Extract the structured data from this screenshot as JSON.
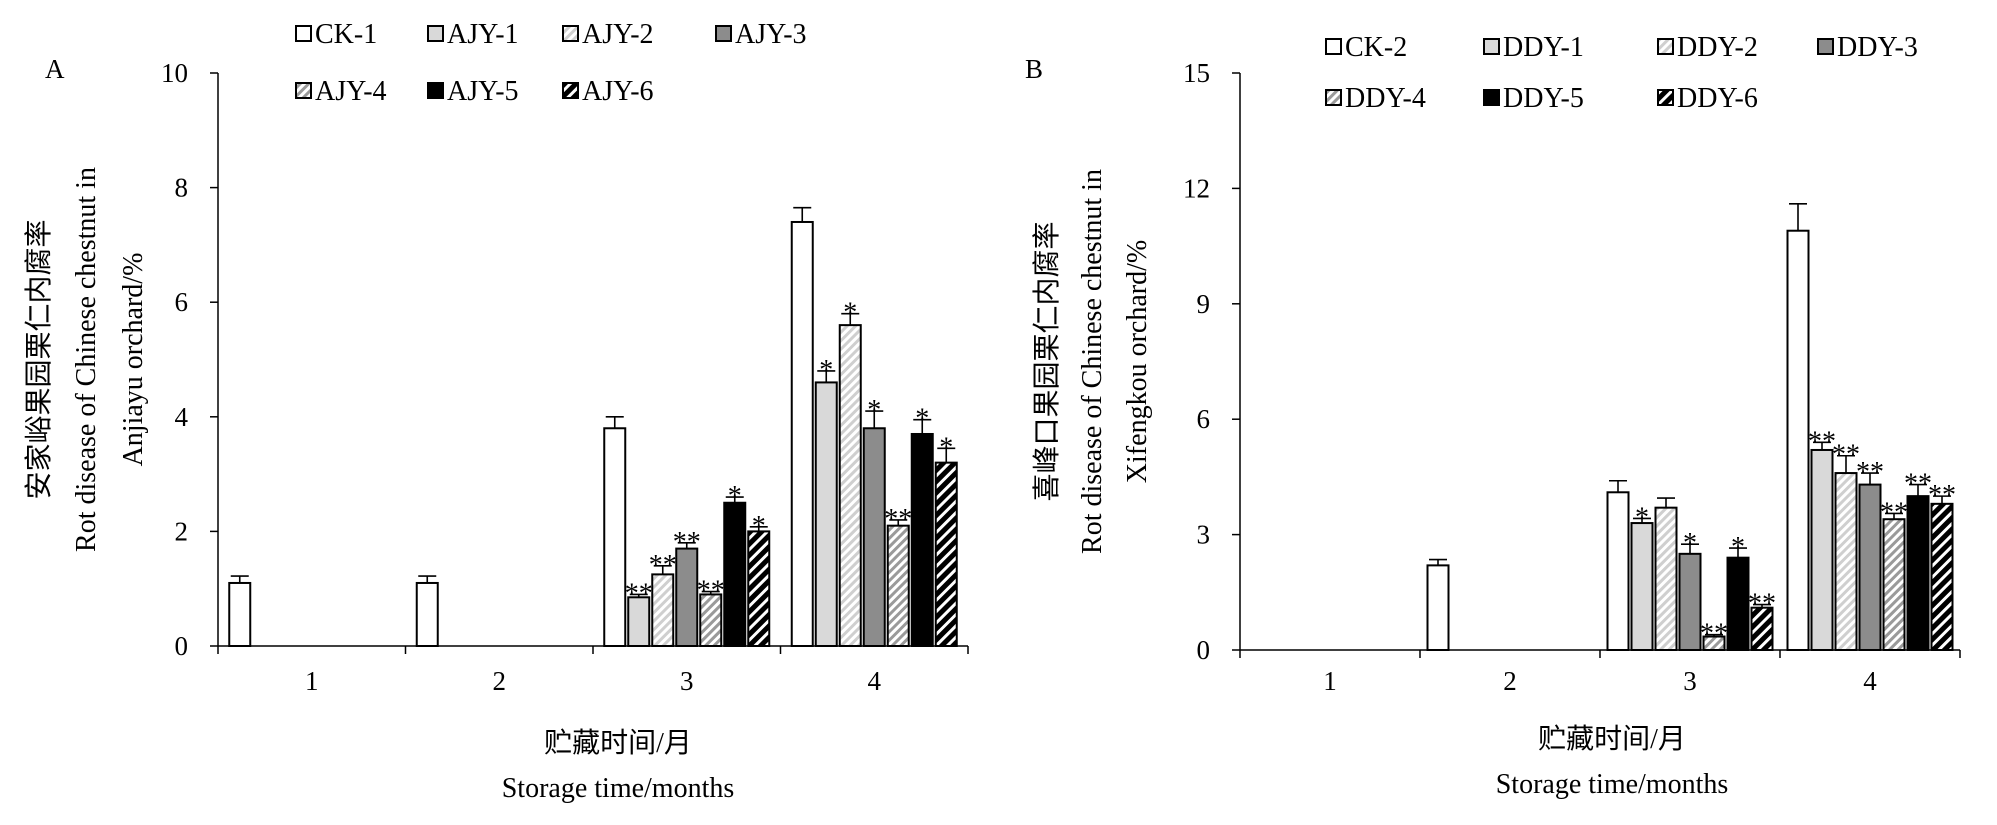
{
  "colors": {
    "black": "#000000",
    "gray": "#8c8c8c",
    "light_gray": "#d9d9d9",
    "white": "#ffffff"
  },
  "chart_data": [
    {
      "panel": "A",
      "type": "bar",
      "title": "",
      "ylabel_lines": [
        "安家峪果园栗仁内腐率",
        "Rot disease of Chinese chestnut in",
        "Anjiayu orchard/%"
      ],
      "xlabel_lines": [
        "贮藏时间/月",
        "Storage time/months"
      ],
      "categories": [
        "1",
        "2",
        "3",
        "4"
      ],
      "ylim": [
        0,
        10
      ],
      "yticks": [
        "0",
        "2",
        "4",
        "6",
        "8",
        "10"
      ],
      "grid": false,
      "legend_position": "top",
      "series": [
        {
          "name": "CK-1",
          "pattern": "white",
          "values": [
            1.1,
            1.1,
            3.8,
            7.4
          ],
          "errors": [
            0.12,
            0.12,
            0.2,
            0.25
          ],
          "marks": [
            "",
            "",
            "",
            ""
          ]
        },
        {
          "name": "AJY-1",
          "pattern": "lightgray",
          "values": [
            0,
            0,
            0.85,
            4.6
          ],
          "errors": [
            0,
            0,
            0.05,
            0.2
          ],
          "marks": [
            "",
            "",
            "**",
            "*"
          ]
        },
        {
          "name": "AJY-2",
          "pattern": "light-hatch",
          "values": [
            0,
            0,
            1.25,
            5.6
          ],
          "errors": [
            0,
            0,
            0.15,
            0.2
          ],
          "marks": [
            "",
            "",
            "**",
            "*"
          ]
        },
        {
          "name": "AJY-3",
          "pattern": "gray",
          "values": [
            0,
            0,
            1.7,
            3.8
          ],
          "errors": [
            0,
            0,
            0.1,
            0.3
          ],
          "marks": [
            "",
            "",
            "**",
            "*"
          ]
        },
        {
          "name": "AJY-4",
          "pattern": "gray-hatch",
          "values": [
            0,
            0,
            0.9,
            2.1
          ],
          "errors": [
            0,
            0,
            0.05,
            0.1
          ],
          "marks": [
            "",
            "",
            "**",
            "**"
          ]
        },
        {
          "name": "AJY-5",
          "pattern": "black",
          "values": [
            0,
            0,
            2.5,
            3.7
          ],
          "errors": [
            0,
            0,
            0.1,
            0.25
          ],
          "marks": [
            "",
            "",
            "*",
            "*"
          ]
        },
        {
          "name": "AJY-6",
          "pattern": "dark-hatch",
          "values": [
            0,
            0,
            2.0,
            3.2
          ],
          "errors": [
            0,
            0,
            0.08,
            0.25
          ],
          "marks": [
            "",
            "",
            "*",
            "*"
          ]
        }
      ]
    },
    {
      "panel": "B",
      "type": "bar",
      "title": "",
      "ylabel_lines": [
        "喜峰口果园栗仁内腐率",
        "Rot disease of Chinese chestnut in",
        "Xifengkou orchard/%"
      ],
      "xlabel_lines": [
        "贮藏时间/月",
        "Storage time/months"
      ],
      "categories": [
        "1",
        "2",
        "3",
        "4"
      ],
      "ylim": [
        0,
        15
      ],
      "yticks": [
        "0",
        "3",
        "6",
        "9",
        "12",
        "15"
      ],
      "grid": false,
      "legend_position": "top",
      "series": [
        {
          "name": "CK-2",
          "pattern": "white",
          "values": [
            0,
            2.2,
            4.1,
            10.9
          ],
          "errors": [
            0,
            0.15,
            0.3,
            0.7
          ],
          "marks": [
            "",
            "",
            "",
            ""
          ]
        },
        {
          "name": "DDY-1",
          "pattern": "lightgray",
          "values": [
            0,
            0,
            3.3,
            5.2
          ],
          "errors": [
            0,
            0,
            0.12,
            0.2
          ],
          "marks": [
            "",
            "",
            "*",
            "**"
          ]
        },
        {
          "name": "DDY-2",
          "pattern": "light-hatch",
          "values": [
            0,
            0,
            3.7,
            4.6
          ],
          "errors": [
            0,
            0,
            0.25,
            0.45
          ],
          "marks": [
            "",
            "",
            "",
            "**"
          ]
        },
        {
          "name": "DDY-3",
          "pattern": "gray",
          "values": [
            0,
            0,
            2.5,
            4.3
          ],
          "errors": [
            0,
            0,
            0.25,
            0.3
          ],
          "marks": [
            "",
            "",
            "*",
            "**"
          ]
        },
        {
          "name": "DDY-4",
          "pattern": "gray-hatch",
          "values": [
            0,
            0,
            0.35,
            3.4
          ],
          "errors": [
            0,
            0,
            0.05,
            0.15
          ],
          "marks": [
            "",
            "",
            "**",
            "**"
          ]
        },
        {
          "name": "DDY-5",
          "pattern": "black",
          "values": [
            0,
            0,
            2.4,
            4.0
          ],
          "errors": [
            0,
            0,
            0.25,
            0.3
          ],
          "marks": [
            "",
            "",
            "*",
            "**"
          ]
        },
        {
          "name": "DDY-6",
          "pattern": "dark-hatch",
          "values": [
            0,
            0,
            1.1,
            3.8
          ],
          "errors": [
            0,
            0,
            0.08,
            0.2
          ],
          "marks": [
            "",
            "",
            "**",
            "**"
          ]
        }
      ]
    }
  ]
}
